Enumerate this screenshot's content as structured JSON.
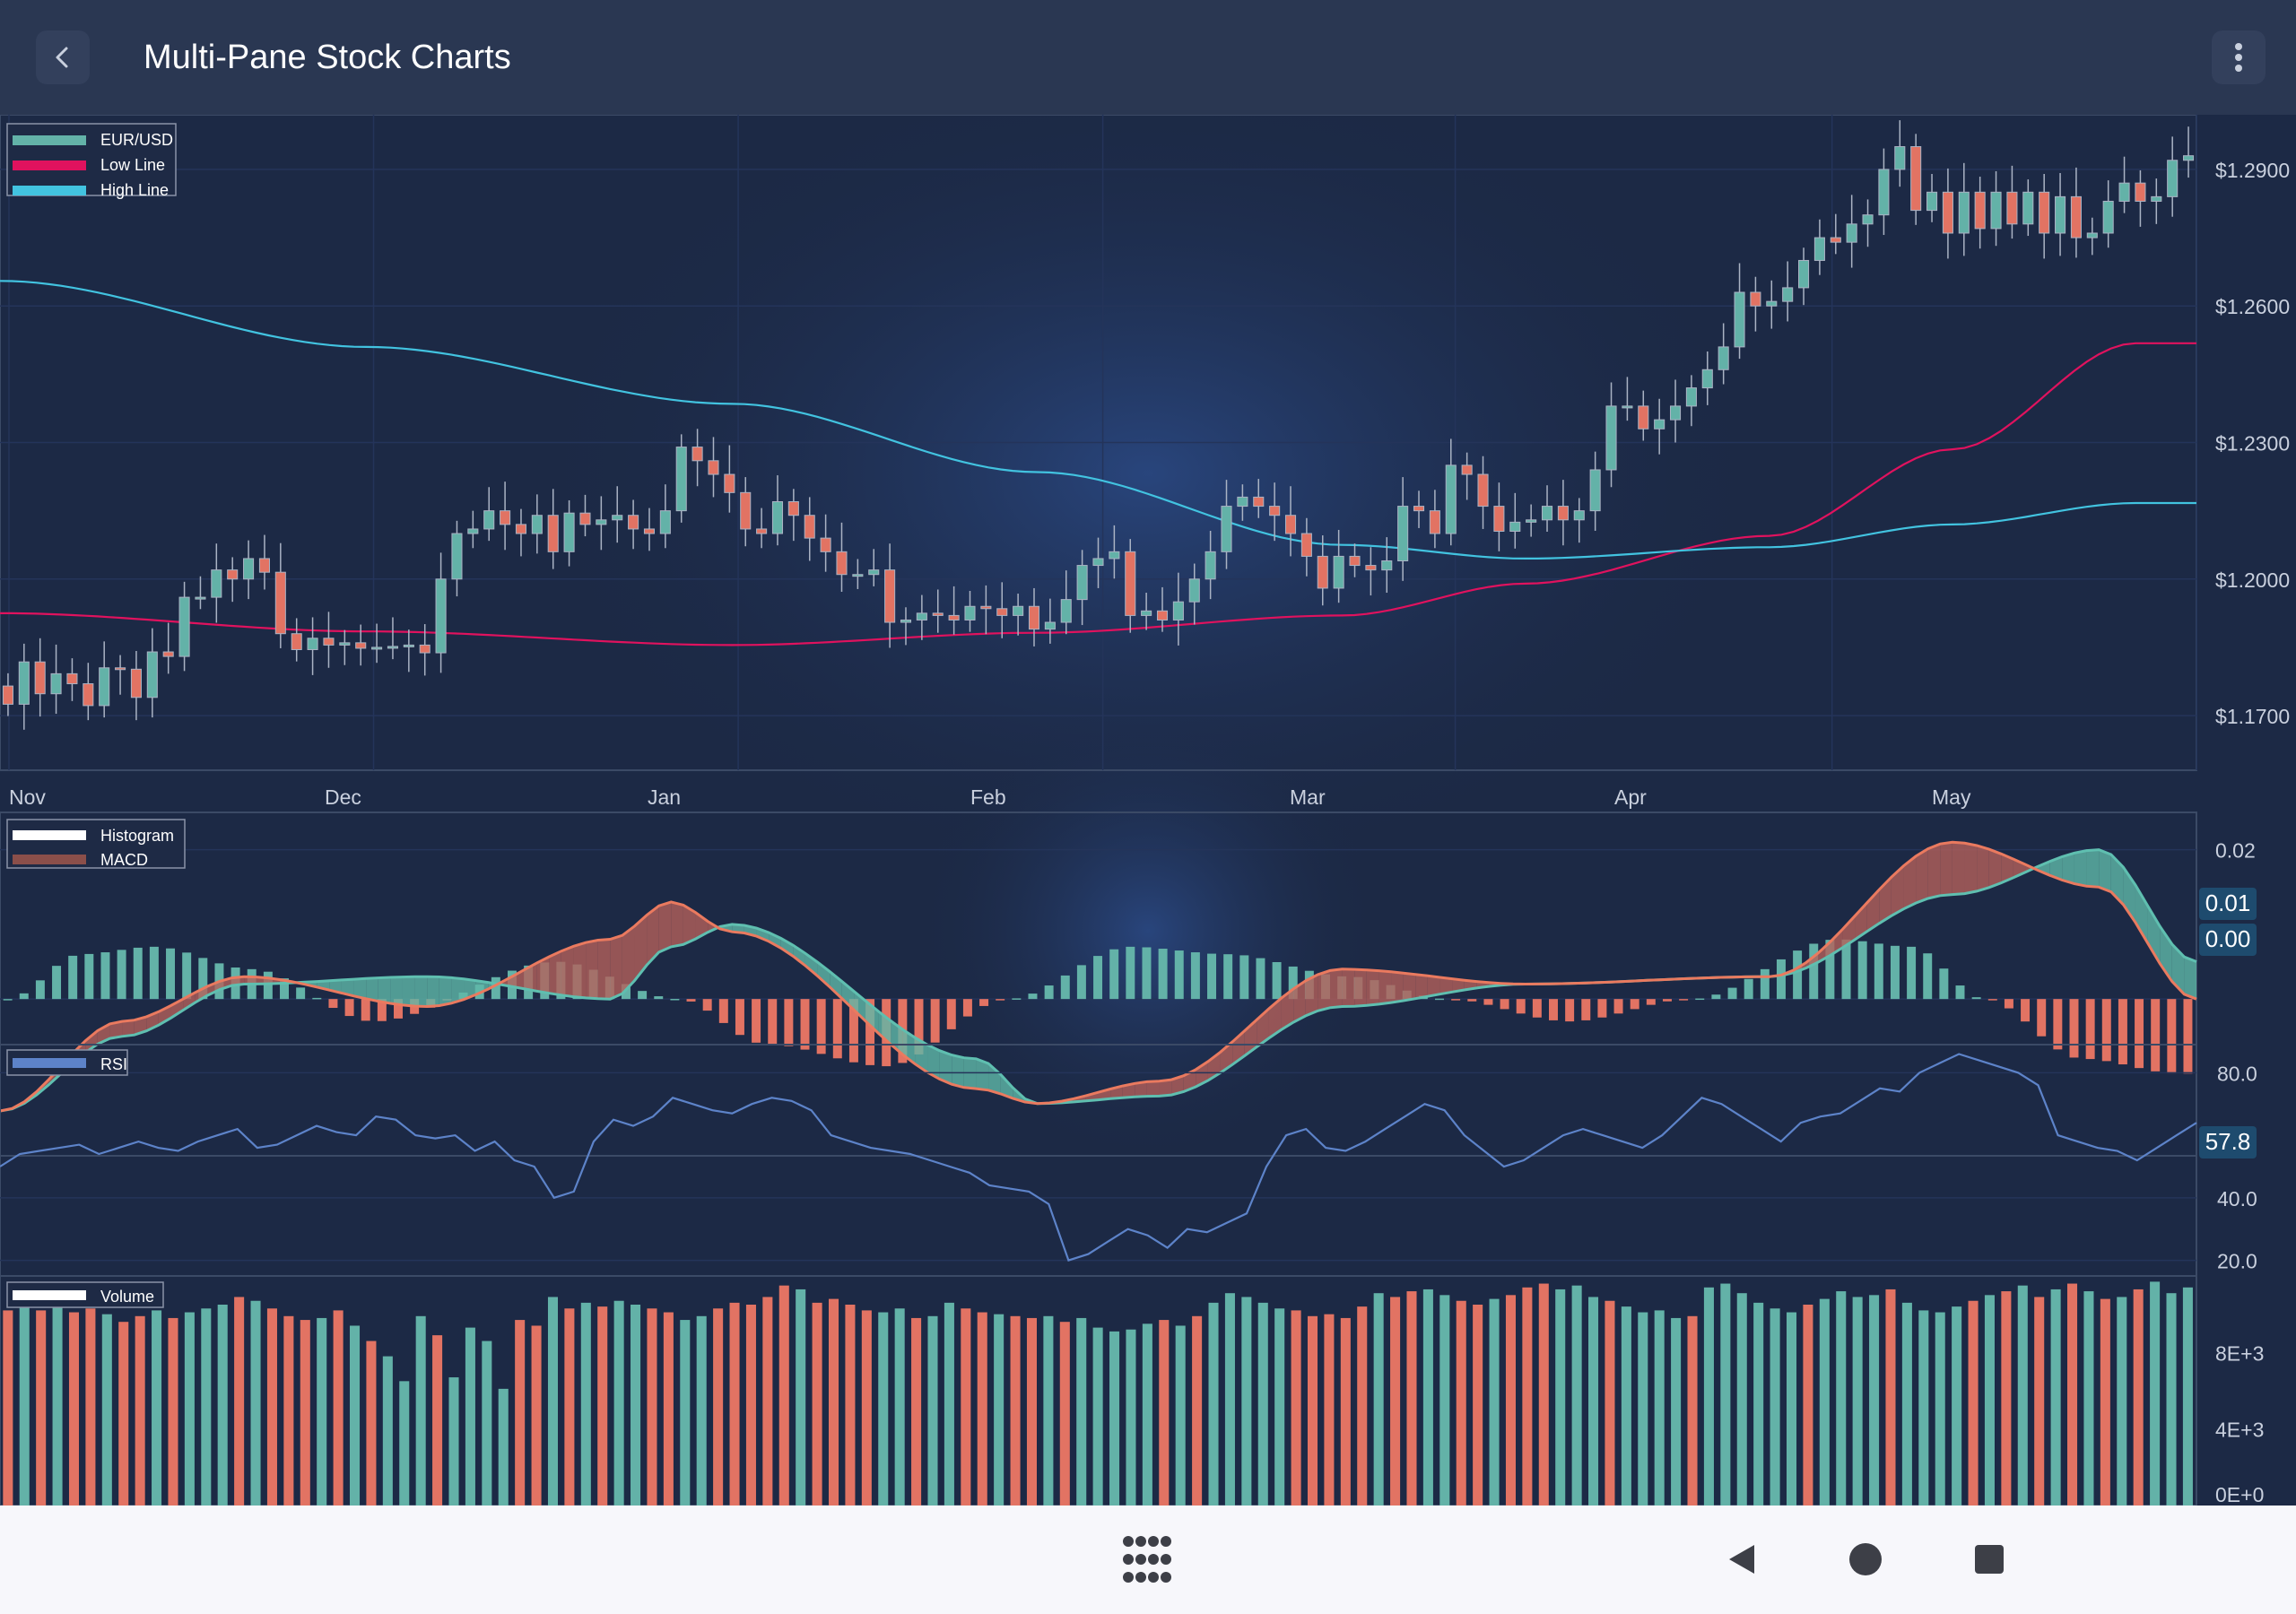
{
  "app": {
    "title": "Multi-Pane Stock Charts"
  },
  "colors": {
    "up": "#63b2a8",
    "down": "#e27363",
    "low_line": "#e0125e",
    "high_line": "#42c3e0",
    "macd_line": "#ea7a5f",
    "signal_line": "#5fbfb0",
    "rsi_line": "#5d83c9",
    "axis_text": "#c9d0de"
  },
  "chart_data": [
    {
      "type": "candlestick",
      "name": "price",
      "legend": [
        {
          "label": "EUR/USD",
          "color": "#63b2a8"
        },
        {
          "label": "Low Line",
          "color": "#e0125e"
        },
        {
          "label": "High Line",
          "color": "#42c3e0"
        }
      ],
      "x_ticks": [
        "Nov",
        "Dec",
        "Jan",
        "Feb",
        "Mar",
        "Apr",
        "May"
      ],
      "y_ticks": [
        "$1.2900",
        "$1.2600",
        "$1.2300",
        "$1.2000",
        "$1.1700"
      ],
      "ylim": [
        1.158,
        1.302
      ],
      "closes": [
        1.1725,
        1.1818,
        1.1748,
        1.1792,
        1.177,
        1.1722,
        1.1805,
        1.1802,
        1.174,
        1.184,
        1.183,
        1.196,
        1.196,
        1.202,
        1.2,
        1.2045,
        1.2015,
        1.188,
        1.1845,
        1.187,
        1.1855,
        1.186,
        1.1848,
        1.185,
        1.1852,
        1.1855,
        1.1838,
        1.2,
        1.21,
        1.211,
        1.215,
        1.212,
        1.21,
        1.214,
        1.206,
        1.2145,
        1.212,
        1.213,
        1.214,
        1.211,
        1.21,
        1.215,
        1.229,
        1.226,
        1.223,
        1.219,
        1.211,
        1.21,
        1.217,
        1.214,
        1.209,
        1.206,
        1.201,
        1.201,
        1.202,
        1.1905,
        1.191,
        1.1925,
        1.192,
        1.191,
        1.194,
        1.1935,
        1.192,
        1.194,
        1.189,
        1.1905,
        1.1955,
        1.203,
        1.2045,
        1.206,
        1.192,
        1.193,
        1.191,
        1.195,
        1.2,
        1.206,
        1.216,
        1.218,
        1.216,
        1.214,
        1.21,
        1.205,
        1.198,
        1.205,
        1.203,
        1.202,
        1.204,
        1.216,
        1.215,
        1.21,
        1.225,
        1.223,
        1.216,
        1.2105,
        1.2125,
        1.213,
        1.216,
        1.213,
        1.215,
        1.224,
        1.238,
        1.238,
        1.233,
        1.235,
        1.238,
        1.242,
        1.246,
        1.251,
        1.263,
        1.26,
        1.261,
        1.264,
        1.27,
        1.275,
        1.274,
        1.278,
        1.28,
        1.29,
        1.295,
        1.281,
        1.285,
        1.276,
        1.285,
        1.277,
        1.285,
        1.278,
        1.285,
        1.276,
        1.284,
        1.275,
        1.276,
        1.283,
        1.287,
        1.283,
        1.284,
        1.292,
        1.293
      ],
      "low_line": [
        1.1925,
        1.1885,
        1.1855,
        1.1882,
        1.192,
        1.199,
        1.2095,
        1.2285,
        1.2518
      ],
      "high_line": [
        1.2655,
        1.251,
        1.2385,
        1.2235,
        1.2075,
        1.2045,
        1.207,
        1.212,
        1.2167
      ],
      "line_x_days": [
        0,
        30,
        60,
        85,
        110,
        125,
        145,
        160,
        175
      ]
    },
    {
      "type": "line+bar",
      "name": "macd",
      "legend": [
        {
          "label": "Histogram",
          "color": "#ffffff"
        },
        {
          "label": "MACD",
          "color": "#8b4f4a"
        }
      ],
      "y_ticks": [
        "0.02"
      ],
      "ylim": [
        -0.021,
        0.025
      ],
      "macd_x_days": [
        0,
        10,
        20,
        35,
        50,
        55,
        60,
        80,
        85,
        95,
        110,
        125,
        145,
        160,
        172,
        180
      ],
      "macd_line": [
        -0.015,
        -0.003,
        0.003,
        -0.001,
        0.008,
        0.013,
        0.009,
        -0.012,
        -0.014,
        -0.011,
        0.004,
        0.002,
        0.003,
        0.021,
        0.015,
        0.0
      ],
      "signal_line": [
        -0.015,
        -0.005,
        0.002,
        0.003,
        0.0,
        0.007,
        0.01,
        -0.008,
        -0.014,
        -0.013,
        -0.001,
        0.002,
        0.003,
        0.014,
        0.02,
        0.005
      ],
      "histogram_x_days": [
        0,
        6,
        12,
        20,
        30,
        45,
        55,
        62,
        72,
        82,
        92,
        100,
        110,
        118,
        128,
        138,
        150,
        156,
        162,
        170,
        178,
        180
      ],
      "histogram": [
        0.0,
        0.006,
        0.007,
        0.004,
        -0.003,
        0.005,
        0.0,
        -0.006,
        -0.009,
        0.0,
        0.007,
        0.006,
        0.003,
        0.0,
        -0.003,
        0.0,
        0.008,
        0.007,
        0.0,
        -0.008,
        -0.01,
        -0.01
      ],
      "value_labels": [
        "0.01",
        "0.00"
      ]
    },
    {
      "type": "line",
      "name": "rsi",
      "legend": [
        {
          "label": "RSI",
          "color": "#5d83c9"
        }
      ],
      "y_ticks": [
        "80.0",
        "40.0",
        "20.0"
      ],
      "ylim": [
        15,
        89
      ],
      "values": [
        50,
        54,
        55,
        56,
        57,
        54,
        56,
        58,
        56,
        55,
        58,
        60,
        62,
        56,
        57,
        60,
        63,
        61,
        60,
        66,
        65,
        60,
        59,
        60,
        55,
        58,
        52,
        50,
        40,
        42,
        58,
        65,
        63,
        66,
        72,
        70,
        68,
        67,
        70,
        72,
        71,
        68,
        60,
        58,
        56,
        55,
        54,
        52,
        50,
        48,
        44,
        43,
        42,
        38,
        20,
        22,
        26,
        30,
        28,
        24,
        30,
        29,
        32,
        35,
        50,
        60,
        62,
        56,
        55,
        58,
        62,
        66,
        70,
        68,
        60,
        55,
        50,
        52,
        56,
        60,
        62,
        60,
        58,
        56,
        60,
        66,
        72,
        70,
        66,
        62,
        58,
        64,
        66,
        67,
        71,
        75,
        74,
        80,
        83,
        86,
        84,
        82,
        80,
        76,
        60,
        58,
        56,
        55,
        52,
        56,
        60,
        64
      ],
      "value_label": "57.8"
    },
    {
      "type": "bar",
      "name": "volume",
      "legend": [
        {
          "label": "Volume",
          "color": "#ffffff"
        }
      ],
      "y_ticks": [
        "8E+3",
        "4E+3",
        "0E+0"
      ],
      "ylim": [
        0,
        12000
      ],
      "values": [
        10200,
        10600,
        10200,
        10400,
        10100,
        10300,
        10000,
        9600,
        9900,
        10200,
        9800,
        10100,
        10300,
        10500,
        10900,
        10700,
        10300,
        9900,
        9700,
        9800,
        10200,
        9400,
        8600,
        7800,
        6500,
        9900,
        8900,
        6700,
        9300,
        8600,
        6100,
        9700,
        9400,
        10900,
        10300,
        10600,
        10400,
        10700,
        10500,
        10300,
        10100,
        9700,
        9900,
        10300,
        10600,
        10500,
        10900,
        11500,
        11300,
        10600,
        10800,
        10500,
        10200,
        10100,
        10300,
        9800,
        9900,
        10600,
        10300,
        10100,
        10000,
        9900,
        9800,
        9900,
        9600,
        9800,
        9300,
        9100,
        9200,
        9500,
        9700,
        9400,
        9900,
        10600,
        11100,
        10900,
        10600,
        10300,
        10200,
        9900,
        10000,
        9800,
        10400,
        11100,
        10900,
        11200,
        11300,
        11000,
        10700,
        10500,
        10800,
        11000,
        11400,
        11600,
        11300,
        11500,
        10900,
        10700,
        10400,
        10100,
        10200,
        9800,
        9900,
        11400,
        11600,
        11100,
        10600,
        10300,
        10100,
        10500,
        10800,
        11200,
        10900,
        11000,
        11300,
        10600,
        10200,
        10100,
        10400,
        10700,
        11000,
        11200,
        11500,
        10900,
        11300,
        11600,
        11200,
        10800,
        10900,
        11300,
        11700,
        11100,
        11400
      ]
    }
  ]
}
